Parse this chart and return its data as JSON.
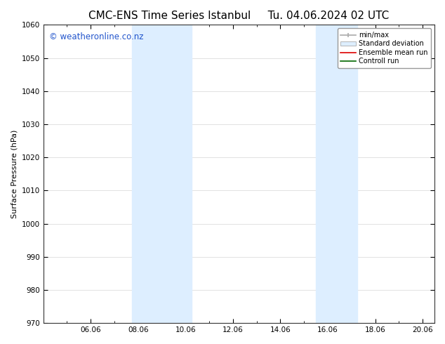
{
  "title_left": "CMC-ENS Time Series Istanbul",
  "title_right": "Tu. 04.06.2024 02 UTC",
  "ylabel": "Surface Pressure (hPa)",
  "ylim": [
    970,
    1060
  ],
  "yticks": [
    970,
    980,
    990,
    1000,
    1010,
    1020,
    1030,
    1040,
    1050,
    1060
  ],
  "xlim_start": 4.0,
  "xlim_end": 20.5,
  "xtick_positions": [
    6.0,
    8.0,
    10.0,
    12.0,
    14.0,
    16.0,
    18.0,
    20.0
  ],
  "xtick_labels": [
    "06.06",
    "08.06",
    "10.06",
    "12.06",
    "14.06",
    "16.06",
    "18.06",
    "20.06"
  ],
  "shaded_bands": [
    {
      "x_start": 7.75,
      "x_end": 10.25
    },
    {
      "x_start": 15.5,
      "x_end": 17.25
    }
  ],
  "shade_color": "#ddeeff",
  "watermark_text": "© weatheronline.co.nz",
  "watermark_color": "#2255cc",
  "watermark_fontsize": 8.5,
  "legend_labels": [
    "min/max",
    "Standard deviation",
    "Ensemble mean run",
    "Controll run"
  ],
  "title_fontsize": 11,
  "axis_label_fontsize": 8,
  "tick_fontsize": 7.5,
  "background_color": "#ffffff",
  "grid_color": "#dddddd",
  "font_family": "DejaVu Sans"
}
